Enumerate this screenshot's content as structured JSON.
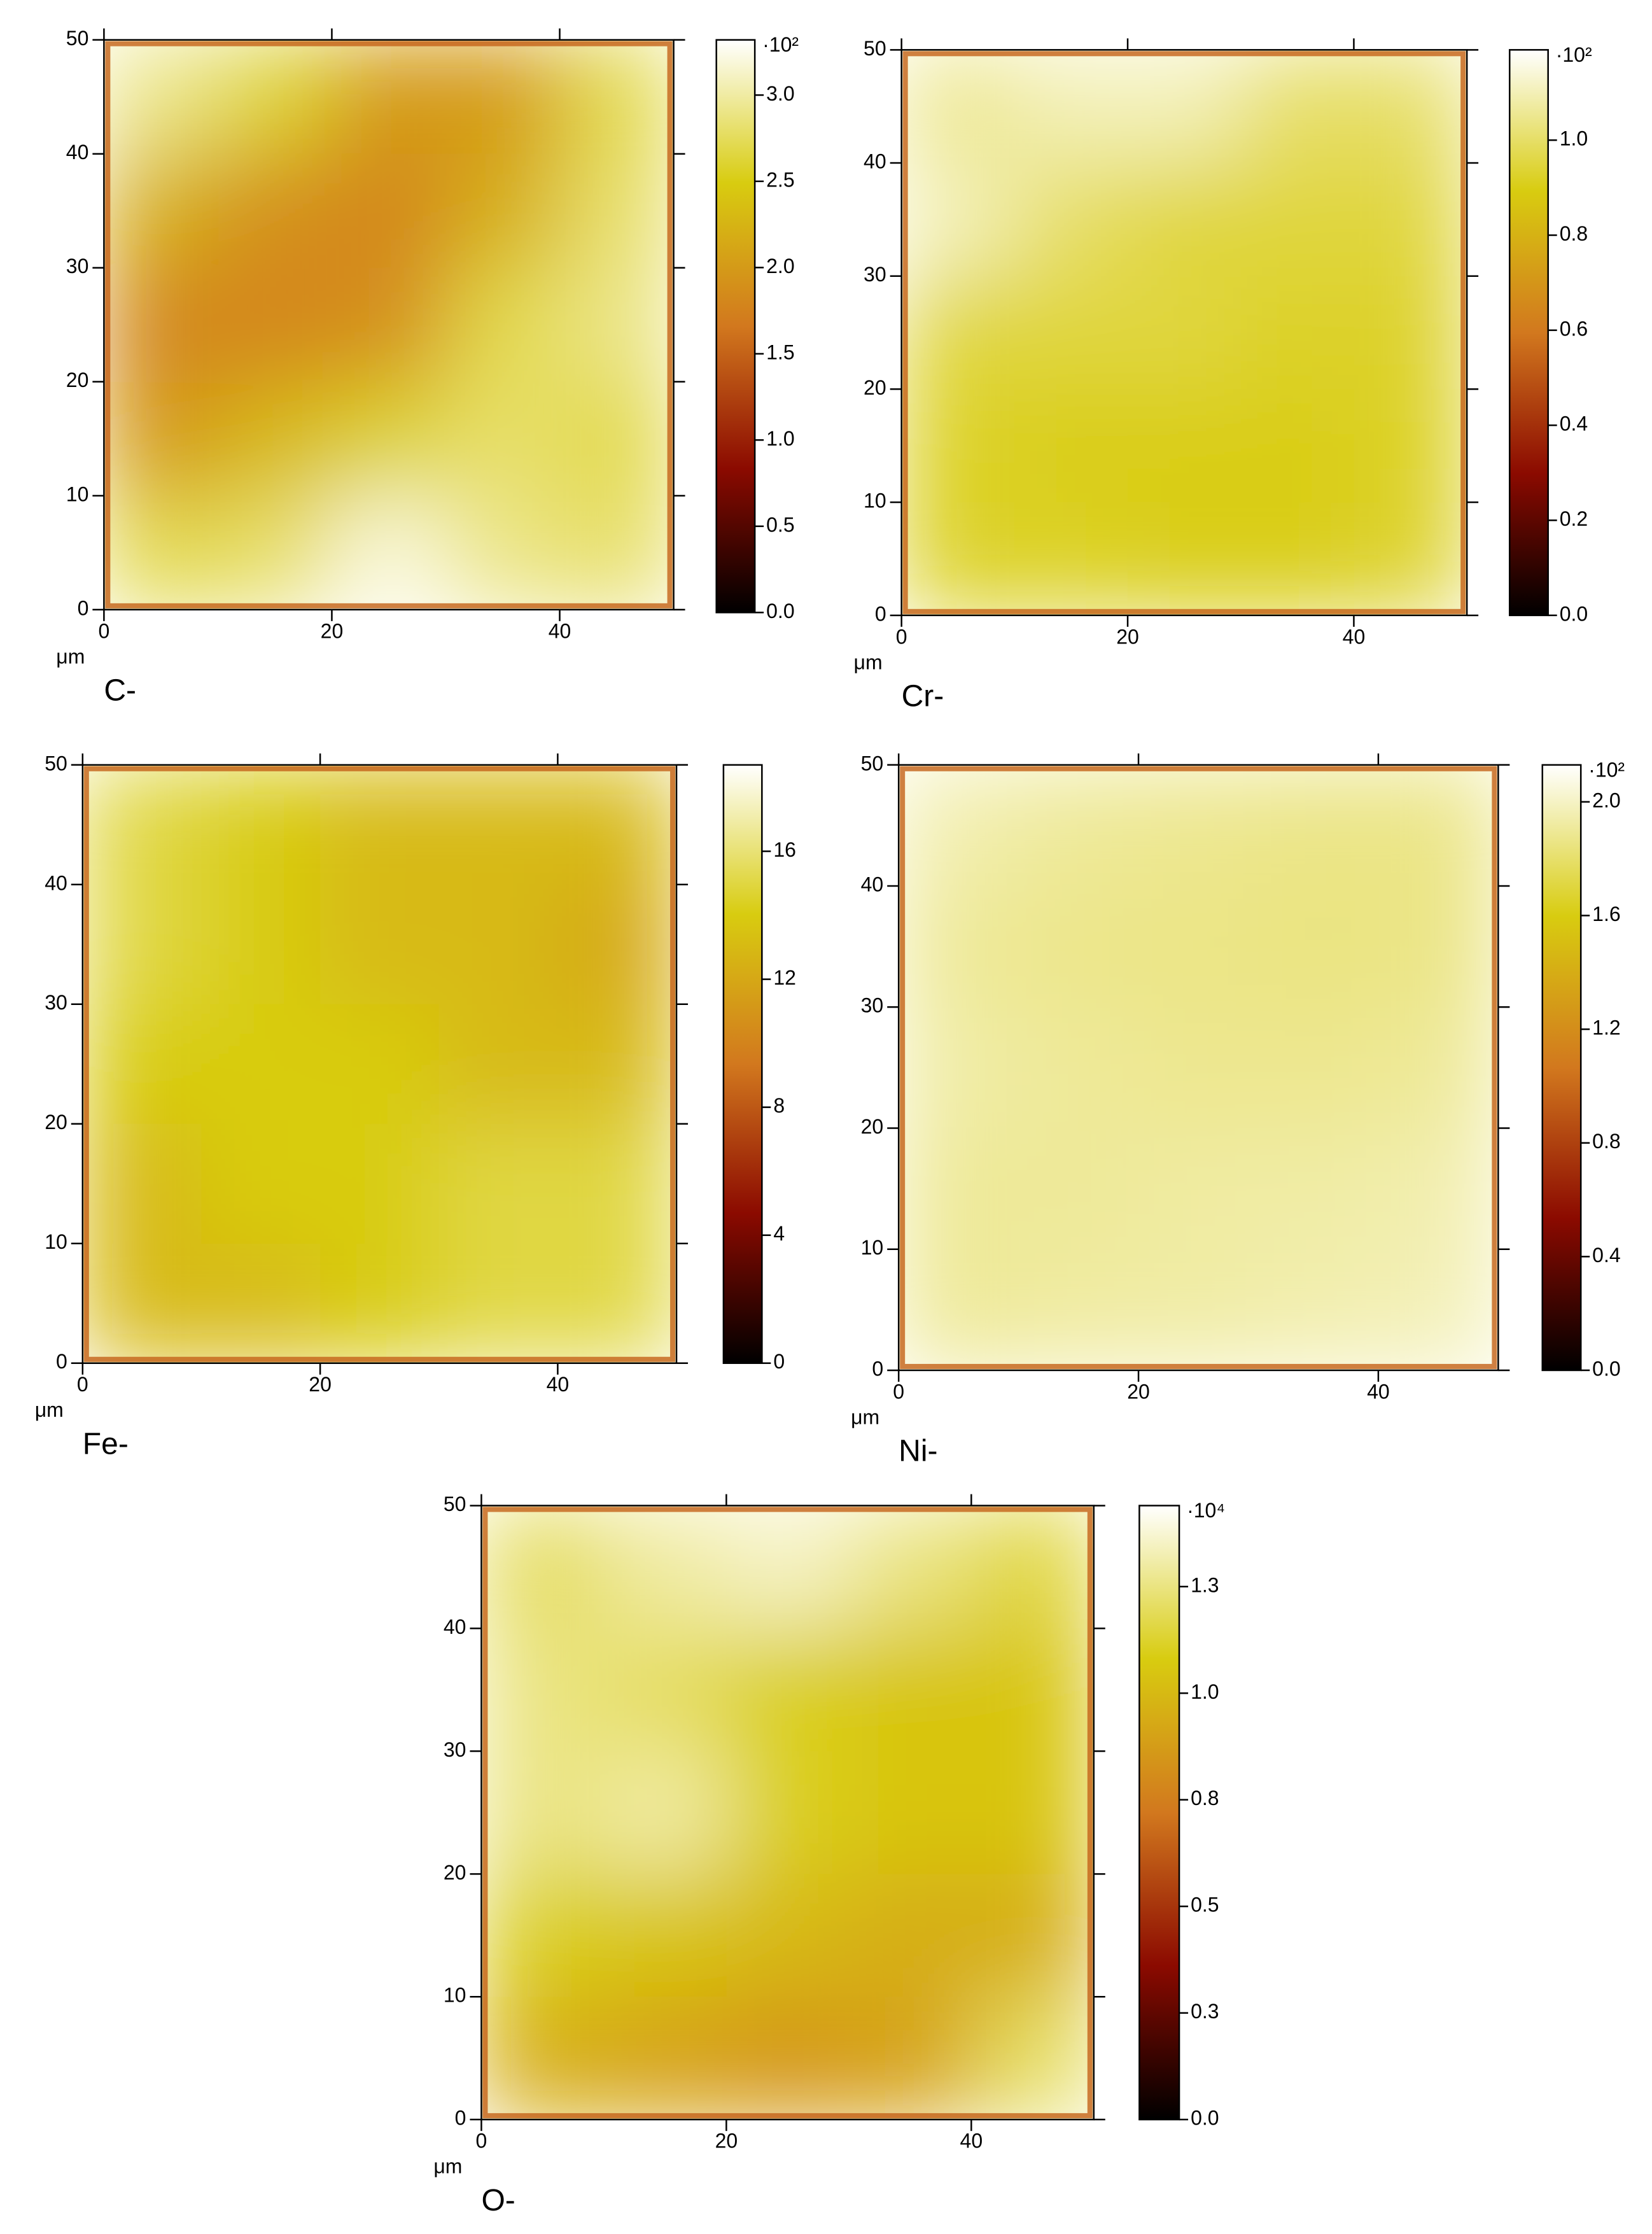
{
  "chart_data": [
    {
      "type": "heatmap",
      "label": "C-",
      "xlabel": "μm",
      "xlim": [
        0,
        50
      ],
      "ylim": [
        0,
        50
      ],
      "xticks": [
        0,
        20,
        40
      ],
      "yticks": [
        0,
        10,
        20,
        30,
        40,
        50
      ],
      "z": [
        [
          2.9,
          2.6,
          2.0,
          2.0,
          2.7
        ],
        [
          2.2,
          1.9,
          1.8,
          2.2,
          2.8
        ],
        [
          1.8,
          1.8,
          1.9,
          2.7,
          2.9
        ],
        [
          2.0,
          2.3,
          2.6,
          2.8,
          2.7
        ],
        [
          2.7,
          2.8,
          3.2,
          2.9,
          2.8
        ]
      ],
      "colorbar": {
        "lim": [
          0,
          3.32
        ],
        "ticks": [
          {
            "value": 0,
            "label": "0.0"
          },
          0.5,
          {
            "value": 1,
            "label": "1.0"
          },
          1.5,
          {
            "value": 2,
            "label": "2.0"
          },
          2.5,
          {
            "value": 3,
            "label": "3.0"
          }
        ],
        "multiplier": "·10²"
      },
      "colormap": [
        "#000000",
        "#8b0a00",
        "#d2781e",
        "#d8cc10",
        "#ffffff"
      ]
    },
    {
      "type": "heatmap",
      "label": "Cr-",
      "xlabel": "μm",
      "xlim": [
        0,
        50
      ],
      "ylim": [
        0,
        50
      ],
      "xticks": [
        0,
        20,
        40
      ],
      "yticks": [
        0,
        10,
        20,
        30,
        40,
        50
      ],
      "z": [
        [
          1.05,
          1.1,
          1.1,
          1.0,
          1.0
        ],
        [
          1.1,
          1.0,
          0.95,
          0.95,
          0.95
        ],
        [
          0.95,
          0.95,
          0.95,
          0.92,
          0.93
        ],
        [
          0.92,
          0.9,
          0.9,
          0.9,
          0.92
        ],
        [
          0.92,
          0.92,
          0.9,
          0.9,
          0.93
        ]
      ],
      "colorbar": {
        "lim": [
          0,
          1.19
        ],
        "ticks": [
          {
            "value": 0,
            "label": "0.0"
          },
          0.2,
          0.4,
          0.6,
          0.8,
          {
            "value": 1,
            "label": "1.0"
          }
        ],
        "multiplier": "·10²"
      },
      "colormap": [
        "#000000",
        "#8b0a00",
        "#d2781e",
        "#d8cc10",
        "#ffffff"
      ]
    },
    {
      "type": "heatmap",
      "label": "Fe-",
      "xlabel": "μm",
      "xlim": [
        0,
        50
      ],
      "ylim": [
        0,
        50
      ],
      "xticks": [
        0,
        20,
        40
      ],
      "yticks": [
        0,
        10,
        20,
        30,
        40,
        50
      ],
      "z": [
        [
          15,
          14,
          13,
          13,
          13
        ],
        [
          15,
          14,
          13,
          13,
          12
        ],
        [
          14,
          14,
          14,
          13,
          13
        ],
        [
          13,
          14,
          14,
          15,
          15
        ],
        [
          13,
          13,
          14,
          15,
          15
        ]
      ],
      "colorbar": {
        "lim": [
          0,
          18.7
        ],
        "ticks": [
          0,
          4,
          8,
          12,
          16
        ]
      },
      "colormap": [
        "#000000",
        "#8b0a00",
        "#d2781e",
        "#d8cc10",
        "#ffffff"
      ]
    },
    {
      "type": "heatmap",
      "label": "Ni-",
      "xlabel": "μm",
      "xlim": [
        0,
        50
      ],
      "ylim": [
        0,
        50
      ],
      "xticks": [
        0,
        20,
        40
      ],
      "yticks": [
        0,
        10,
        20,
        30,
        40,
        50
      ],
      "z": [
        [
          1.95,
          1.9,
          1.88,
          1.86,
          1.86
        ],
        [
          1.9,
          1.87,
          1.86,
          1.85,
          1.86
        ],
        [
          1.93,
          1.9,
          1.88,
          1.88,
          1.9
        ],
        [
          1.9,
          1.9,
          1.92,
          1.93,
          1.95
        ],
        [
          1.9,
          1.92,
          1.93,
          1.95,
          1.97
        ]
      ],
      "colorbar": {
        "lim": [
          0,
          2.13
        ],
        "ticks": [
          {
            "value": 0,
            "label": "0.0"
          },
          0.4,
          0.8,
          1.2,
          1.6,
          {
            "value": 2,
            "label": "2.0"
          }
        ],
        "multiplier": "·10²"
      },
      "colormap": [
        "#000000",
        "#8b0a00",
        "#d2781e",
        "#d8cc10",
        "#ffffff"
      ]
    },
    {
      "type": "heatmap",
      "label": "O-",
      "xlabel": "μm",
      "xlim": [
        0,
        50
      ],
      "ylim": [
        0,
        50
      ],
      "xticks": [
        0,
        20,
        40
      ],
      "yticks": [
        0,
        10,
        20,
        30,
        40,
        50
      ],
      "z": [
        [
          1.2,
          1.3,
          1.35,
          1.25,
          1.15
        ],
        [
          1.25,
          1.2,
          1.1,
          1.05,
          1.05
        ],
        [
          1.25,
          1.3,
          1.1,
          1.05,
          1.05
        ],
        [
          1.1,
          1.05,
          1.0,
          0.95,
          0.95
        ],
        [
          0.95,
          0.9,
          0.85,
          0.9,
          1.2
        ]
      ],
      "colorbar": {
        "lim": [
          0,
          1.44
        ],
        "ticks": [
          {
            "value": 0,
            "label": "0.0"
          },
          {
            "value": 0.25,
            "label": "0.3"
          },
          0.5,
          {
            "value": 0.75,
            "label": "0.8"
          },
          {
            "value": 1,
            "label": "1.0"
          },
          {
            "value": 1.25,
            "label": "1.3"
          }
        ],
        "multiplier": "·10⁴"
      },
      "colormap": [
        "#000000",
        "#8b0a00",
        "#d2781e",
        "#d8cc10",
        "#ffffff"
      ]
    }
  ]
}
